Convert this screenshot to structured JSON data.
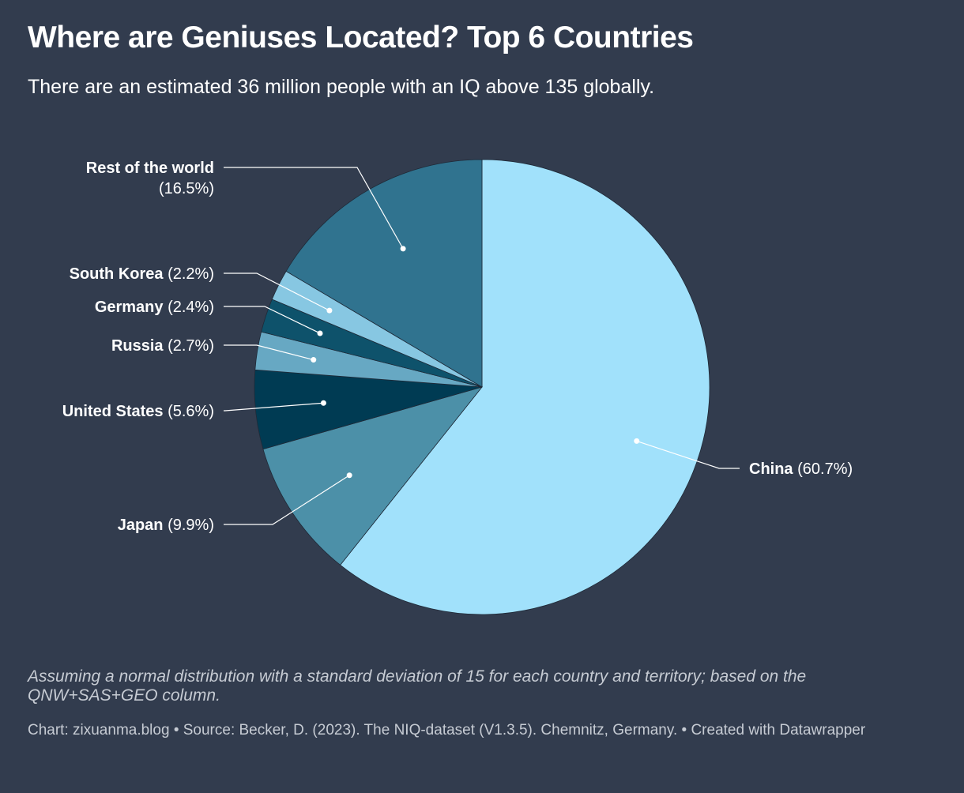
{
  "header": {
    "title": "Where are Geniuses Located? Top 6 Countries",
    "subtitle": "There are an estimated 36 million people with an IQ above 135 globally."
  },
  "chart_data": {
    "type": "pie",
    "start": "12 o'clock",
    "direction": "clockwise",
    "slices": [
      {
        "label": "China",
        "value": 60.7,
        "value_label": "(60.7%)",
        "color": "#a1e1fb"
      },
      {
        "label": "Japan",
        "value": 9.9,
        "value_label": "(9.9%)",
        "color": "#4c90a8"
      },
      {
        "label": "United States",
        "value": 5.6,
        "value_label": "(5.6%)",
        "color": "#003b53"
      },
      {
        "label": "Russia",
        "value": 2.7,
        "value_label": "(2.7%)",
        "color": "#67a8c3"
      },
      {
        "label": "Germany",
        "value": 2.4,
        "value_label": "(2.4%)",
        "color": "#0e526b"
      },
      {
        "label": "South Korea",
        "value": 2.2,
        "value_label": "(2.2%)",
        "color": "#87c7e2"
      },
      {
        "label": "Rest of the world",
        "value": 16.5,
        "value_label": "(16.5%)",
        "color": "#30738f"
      }
    ]
  },
  "footer": {
    "notes": "Assuming a normal distribution with a standard deviation of 15 for each country and territory; based on the QNW+SAS+GEO column.",
    "byline": "Chart: zixuanma.blog • Source: Becker, D. (2023). The NIQ-dataset (V1.3.5). Chemnitz, Germany. • Created with Datawrapper"
  }
}
